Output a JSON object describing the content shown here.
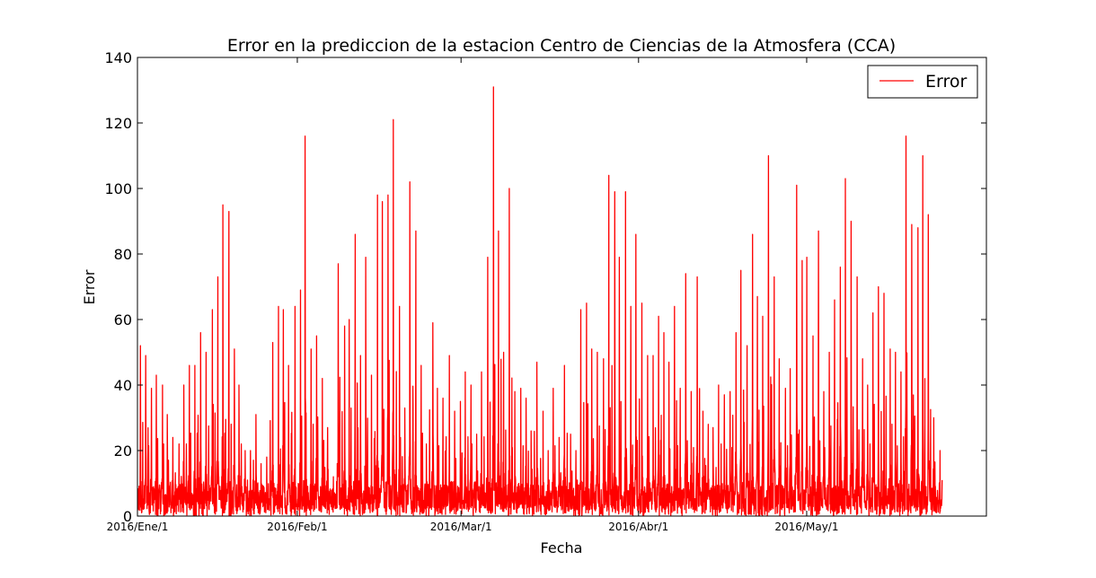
{
  "chart_data": {
    "type": "line",
    "title": "Error en la prediccion de la estacion Centro de Ciencias de la Atmosfera (CCA)",
    "xlabel": "Fecha",
    "ylabel": "Error",
    "ylim": [
      0,
      140
    ],
    "yticks": [
      0,
      20,
      40,
      60,
      80,
      100,
      120,
      140
    ],
    "xrange_days": [
      0,
      154
    ],
    "xticks": [
      {
        "label": "2016/Ene/1",
        "day": 0
      },
      {
        "label": "2016/Feb/1",
        "day": 29
      },
      {
        "label": "2016/Mar/1",
        "day": 58.7
      },
      {
        "label": "2016/Abr/1",
        "day": 90.9
      },
      {
        "label": "2016/May/1",
        "day": 121.4
      }
    ],
    "grid": false,
    "legend": {
      "position": "top-right",
      "entries": [
        "Error"
      ]
    },
    "series": [
      {
        "name": "Error",
        "color": "#ff0000",
        "sampling": "approximately hourly; daily peak values read from the chart",
        "daily_peaks": [
          52,
          49,
          39,
          43,
          40,
          31,
          24,
          22,
          40,
          46,
          46,
          56,
          50,
          63,
          73,
          95,
          93,
          51,
          40,
          20,
          20,
          31,
          16,
          18,
          53,
          64,
          63,
          46,
          64,
          69,
          116,
          51,
          55,
          42,
          27,
          12,
          77,
          58,
          60,
          86,
          49,
          79,
          43,
          98,
          96,
          98,
          121,
          64,
          33,
          102,
          87,
          46,
          22,
          59,
          39,
          36,
          49,
          32,
          35,
          44,
          40,
          25,
          44,
          79,
          131,
          87,
          50,
          100,
          38,
          39,
          36,
          26,
          47,
          32,
          20,
          39,
          24,
          46,
          25,
          20,
          63,
          65,
          51,
          50,
          48,
          104,
          99,
          79,
          99,
          64,
          86,
          65,
          49,
          49,
          61,
          56,
          47,
          64,
          39,
          74,
          38,
          73,
          32,
          28,
          27,
          40,
          37,
          38,
          56,
          75,
          52,
          86,
          67,
          61,
          110,
          73,
          48,
          39,
          45,
          101,
          78,
          79,
          55,
          87,
          38,
          50,
          66,
          76,
          103,
          90,
          73,
          48,
          40,
          62,
          70,
          68,
          51,
          50,
          44,
          116,
          89,
          88,
          110,
          92,
          30,
          20
        ]
      }
    ]
  }
}
